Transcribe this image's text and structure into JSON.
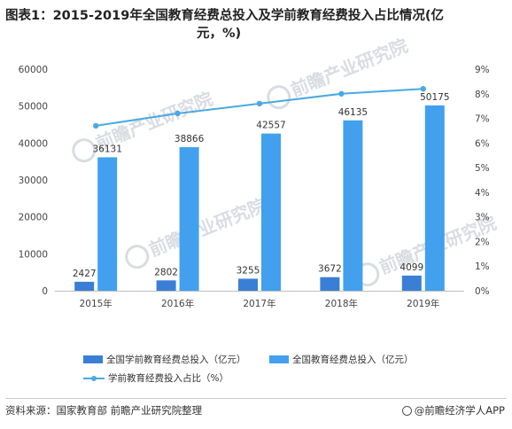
{
  "chart_data": {
    "type": "bar+line",
    "title_line1": "图表1：2015-2019年全国教育经费总投入及学前教育经费投入占比情况(亿",
    "title_line2": "元，%)",
    "categories": [
      "2015年",
      "2016年",
      "2017年",
      "2018年",
      "2019年"
    ],
    "series": [
      {
        "name": "全国学前教育经费总投入（亿元）",
        "type": "bar",
        "axis": "left",
        "color": "#3a7fd5",
        "values": [
          2427,
          2802,
          3255,
          3672,
          4099
        ]
      },
      {
        "name": "全国教育经费总投入（亿元）",
        "type": "bar",
        "axis": "left",
        "color": "#42a0ee",
        "values": [
          36131,
          38866,
          42557,
          46135,
          50175
        ]
      },
      {
        "name": "学前教育经费投入占比（%）",
        "type": "line",
        "axis": "right",
        "color": "#4aa9e4",
        "values": [
          6.7,
          7.2,
          7.6,
          8.0,
          8.2
        ]
      }
    ],
    "y_left": {
      "min": 0,
      "max": 60000,
      "ticks": [
        "0",
        "10000",
        "20000",
        "30000",
        "40000",
        "50000",
        "60000"
      ]
    },
    "y_right": {
      "min": 0,
      "max": 9,
      "ticks": [
        "0%",
        "1%",
        "2%",
        "3%",
        "4%",
        "5%",
        "6%",
        "7%",
        "8%",
        "9%"
      ]
    },
    "grid": false,
    "legend_position": "bottom"
  },
  "footer": {
    "source": "资料来源：国家教育部  前瞻产业研究院整理",
    "brand": "@前瞻经济学人APP"
  },
  "watermark": {
    "text": "前瞻产业研究院",
    "color": "#d9dde2"
  }
}
